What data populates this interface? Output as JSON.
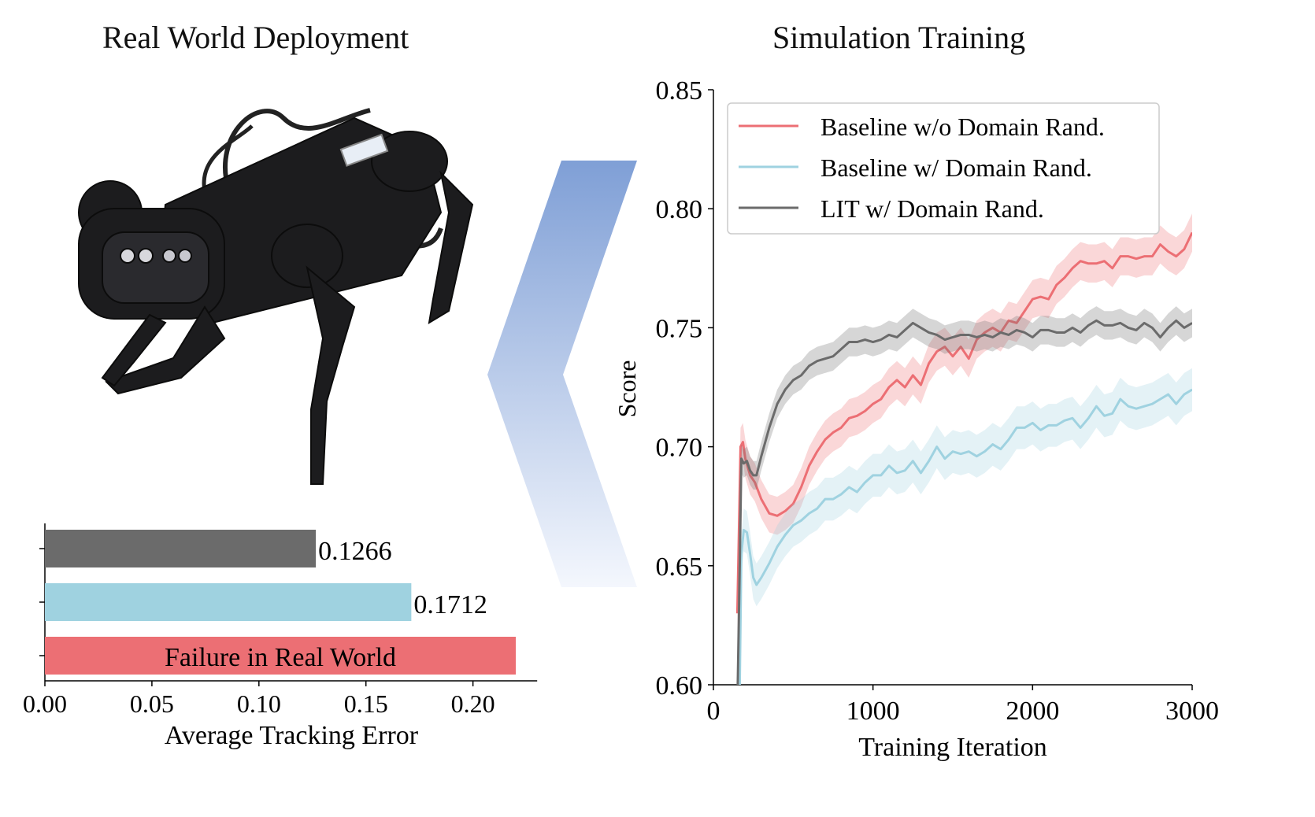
{
  "titles": {
    "left": "Real World Deployment",
    "right": "Simulation Training"
  },
  "colors": {
    "red": "#ec6f74",
    "blue": "#9fd2e0",
    "gray": "#6b6b6b",
    "arrow_top": "#7f9fd6",
    "arrow_bottom": "#f4f7fd"
  },
  "robot": {
    "icon": "quadruped-robot-photo"
  },
  "chart_data": [
    {
      "type": "bar",
      "orientation": "horizontal",
      "xlabel": "Average Tracking Error",
      "xlim": [
        0,
        0.23
      ],
      "xticks": [
        "0.00",
        "0.05",
        "0.10",
        "0.15",
        "0.20"
      ],
      "bars": [
        {
          "value": 0.1266,
          "label": "0.1266",
          "color": "#6b6b6b"
        },
        {
          "value": 0.1712,
          "label": "0.1712",
          "color": "#9fd2e0"
        },
        {
          "value": 0.22,
          "label": "Failure in Real World",
          "color": "#ec6f74"
        }
      ]
    },
    {
      "type": "line",
      "xlabel": "Training Iteration",
      "ylabel": "Score",
      "xlim": [
        0,
        3000
      ],
      "ylim": [
        0.6,
        0.85
      ],
      "xticks": [
        "0",
        "1000",
        "2000",
        "3000"
      ],
      "yticks": [
        "0.60",
        "0.65",
        "0.70",
        "0.75",
        "0.80",
        "0.85"
      ],
      "legend_position": "top-left",
      "series": [
        {
          "name": "Baseline w/o Domain Rand.",
          "color": "#ec6f74",
          "band": 0.008,
          "x": [
            150,
            170,
            185,
            200,
            230,
            260,
            300,
            350,
            400,
            450,
            500,
            550,
            600,
            650,
            700,
            750,
            800,
            850,
            900,
            950,
            1000,
            1050,
            1100,
            1150,
            1200,
            1250,
            1300,
            1350,
            1400,
            1450,
            1500,
            1550,
            1600,
            1650,
            1700,
            1750,
            1800,
            1850,
            1900,
            1950,
            2000,
            2050,
            2100,
            2150,
            2200,
            2250,
            2300,
            2350,
            2400,
            2450,
            2500,
            2550,
            2600,
            2650,
            2700,
            2750,
            2800,
            2850,
            2900,
            2950,
            3000
          ],
          "y": [
            0.63,
            0.7,
            0.702,
            0.695,
            0.688,
            0.685,
            0.678,
            0.672,
            0.671,
            0.673,
            0.676,
            0.683,
            0.692,
            0.698,
            0.703,
            0.706,
            0.708,
            0.712,
            0.713,
            0.715,
            0.718,
            0.72,
            0.725,
            0.728,
            0.725,
            0.73,
            0.726,
            0.735,
            0.74,
            0.742,
            0.738,
            0.742,
            0.737,
            0.745,
            0.748,
            0.75,
            0.748,
            0.753,
            0.752,
            0.757,
            0.762,
            0.763,
            0.762,
            0.768,
            0.771,
            0.775,
            0.778,
            0.777,
            0.777,
            0.778,
            0.775,
            0.78,
            0.78,
            0.779,
            0.78,
            0.78,
            0.785,
            0.782,
            0.78,
            0.783,
            0.79
          ]
        },
        {
          "name": "Baseline w/ Domain Rand.",
          "color": "#9fd2e0",
          "band": 0.009,
          "x": [
            150,
            165,
            175,
            190,
            210,
            230,
            250,
            270,
            300,
            350,
            400,
            450,
            500,
            550,
            600,
            650,
            700,
            750,
            800,
            850,
            900,
            950,
            1000,
            1050,
            1100,
            1150,
            1200,
            1250,
            1300,
            1350,
            1400,
            1450,
            1500,
            1550,
            1600,
            1650,
            1700,
            1750,
            1800,
            1850,
            1900,
            1950,
            2000,
            2050,
            2100,
            2150,
            2200,
            2250,
            2300,
            2350,
            2400,
            2450,
            2500,
            2550,
            2600,
            2650,
            2700,
            2750,
            2800,
            2850,
            2900,
            2950,
            3000
          ],
          "y": [
            0.585,
            0.6,
            0.655,
            0.665,
            0.664,
            0.655,
            0.645,
            0.642,
            0.645,
            0.651,
            0.658,
            0.663,
            0.667,
            0.669,
            0.672,
            0.674,
            0.678,
            0.678,
            0.68,
            0.683,
            0.681,
            0.685,
            0.688,
            0.688,
            0.692,
            0.689,
            0.69,
            0.694,
            0.689,
            0.694,
            0.7,
            0.695,
            0.698,
            0.697,
            0.698,
            0.696,
            0.698,
            0.701,
            0.699,
            0.703,
            0.708,
            0.708,
            0.71,
            0.707,
            0.709,
            0.709,
            0.711,
            0.712,
            0.708,
            0.712,
            0.717,
            0.713,
            0.714,
            0.72,
            0.717,
            0.716,
            0.717,
            0.718,
            0.72,
            0.722,
            0.718,
            0.722,
            0.724
          ]
        },
        {
          "name": "LIT w/ Domain Rand.",
          "color": "#6b6b6b",
          "band": 0.006,
          "x": [
            150,
            165,
            175,
            190,
            210,
            230,
            250,
            270,
            300,
            350,
            400,
            450,
            500,
            550,
            600,
            650,
            700,
            750,
            800,
            850,
            900,
            950,
            1000,
            1050,
            1100,
            1150,
            1200,
            1250,
            1300,
            1350,
            1400,
            1450,
            1500,
            1550,
            1600,
            1650,
            1700,
            1750,
            1800,
            1850,
            1900,
            1950,
            2000,
            2050,
            2100,
            2150,
            2200,
            2250,
            2300,
            2350,
            2400,
            2450,
            2500,
            2550,
            2600,
            2650,
            2700,
            2750,
            2800,
            2850,
            2900,
            2950,
            3000
          ],
          "y": [
            0.59,
            0.65,
            0.695,
            0.693,
            0.694,
            0.69,
            0.688,
            0.688,
            0.696,
            0.708,
            0.718,
            0.724,
            0.728,
            0.73,
            0.734,
            0.736,
            0.737,
            0.738,
            0.741,
            0.744,
            0.744,
            0.745,
            0.744,
            0.745,
            0.747,
            0.746,
            0.749,
            0.752,
            0.75,
            0.748,
            0.747,
            0.745,
            0.746,
            0.747,
            0.747,
            0.746,
            0.747,
            0.746,
            0.748,
            0.747,
            0.749,
            0.748,
            0.746,
            0.749,
            0.749,
            0.748,
            0.748,
            0.75,
            0.748,
            0.751,
            0.753,
            0.751,
            0.751,
            0.752,
            0.75,
            0.749,
            0.752,
            0.75,
            0.746,
            0.75,
            0.753,
            0.75,
            0.752
          ]
        }
      ]
    }
  ]
}
